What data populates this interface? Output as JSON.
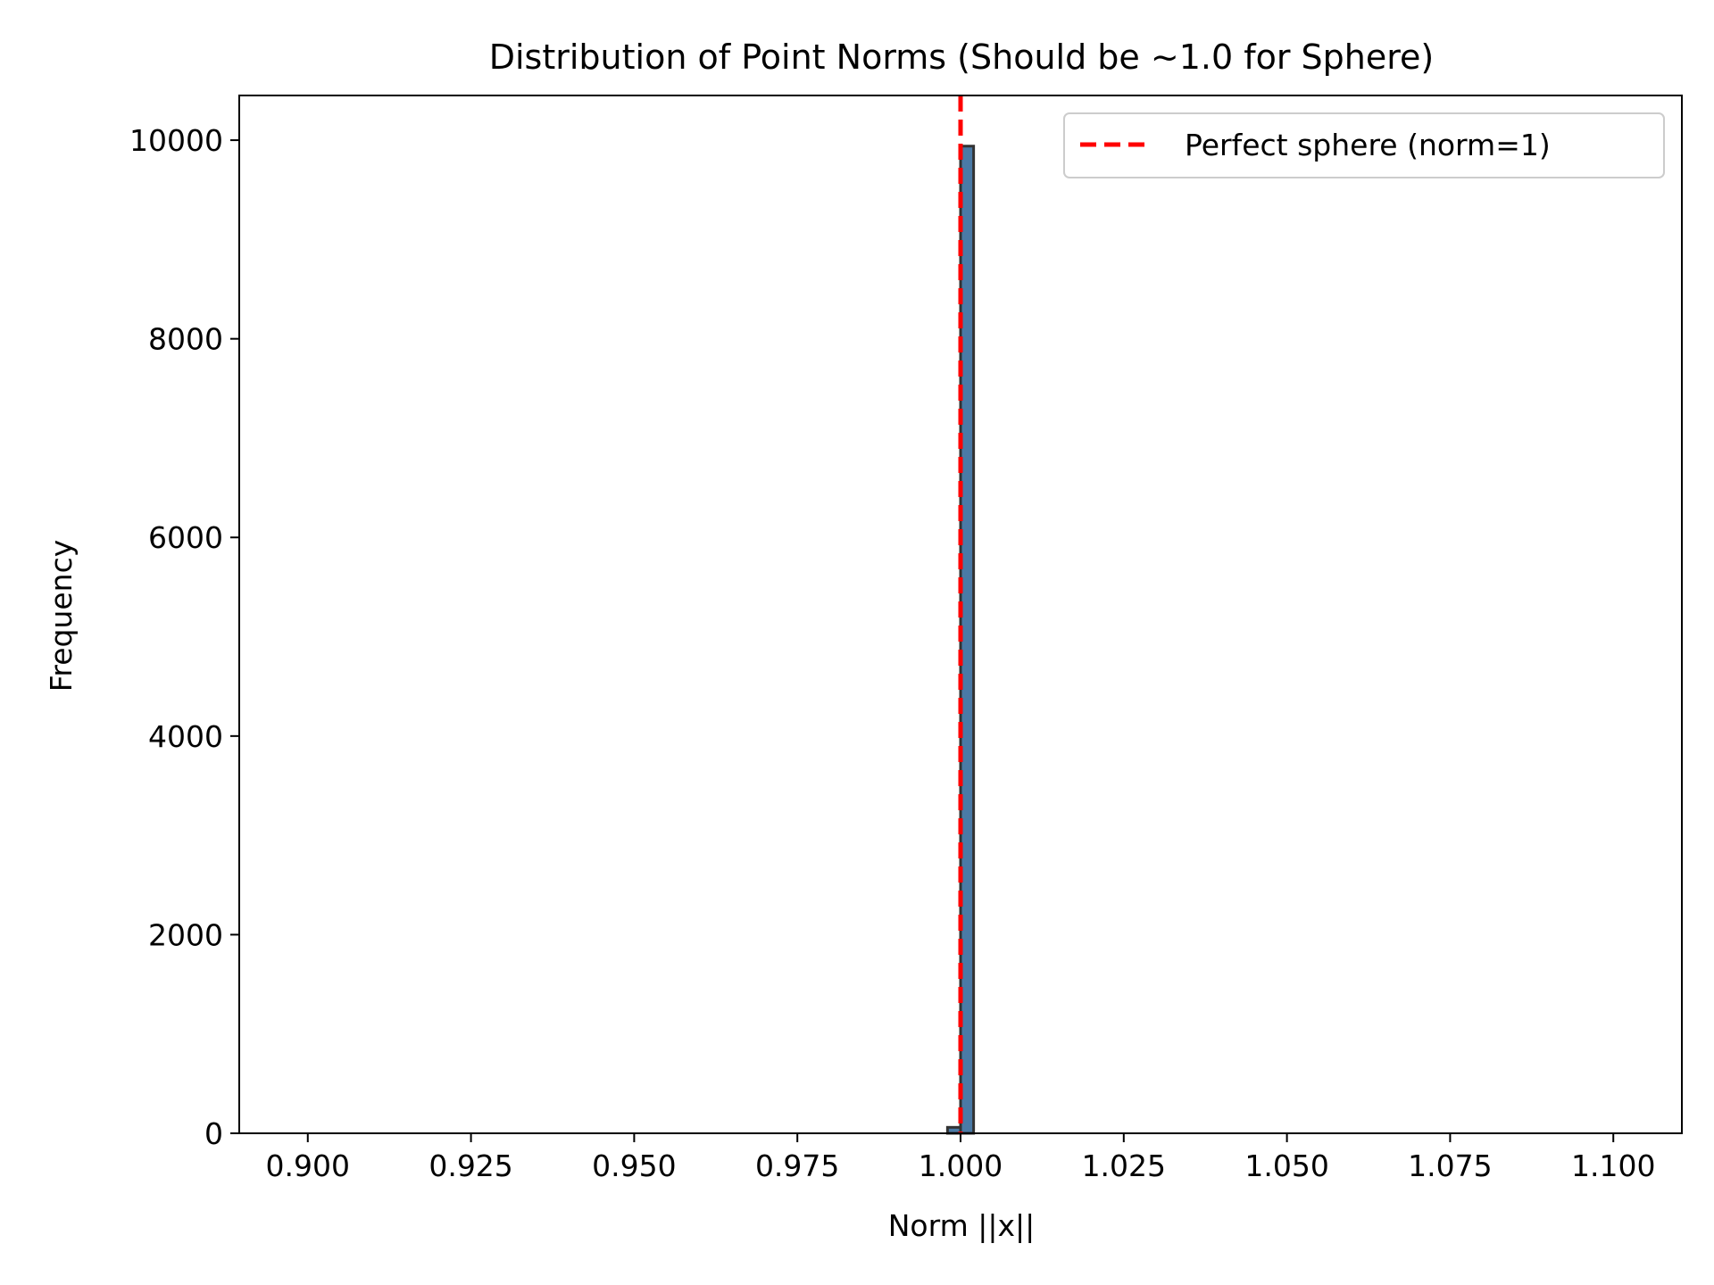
{
  "chart_data": {
    "type": "bar",
    "title": "Distribution of Point Norms (Should be ~1.0 for Sphere)",
    "xlabel": "Norm ||x||",
    "ylabel": "Frequency",
    "xlim": [
      0.8895,
      1.1105
    ],
    "ylim": [
      0,
      10450
    ],
    "xticks": [
      0.9,
      0.925,
      0.95,
      0.975,
      1.0,
      1.025,
      1.05,
      1.075,
      1.1
    ],
    "xtick_labels": [
      "0.900",
      "0.925",
      "0.950",
      "0.975",
      "1.000",
      "1.025",
      "1.050",
      "1.075",
      "1.100"
    ],
    "yticks": [
      0,
      2000,
      4000,
      6000,
      8000,
      10000
    ],
    "ytick_labels": [
      "0",
      "2000",
      "4000",
      "6000",
      "8000",
      "10000"
    ],
    "bins": [
      {
        "x0": 0.998,
        "x1": 1.0,
        "count": 60
      },
      {
        "x0": 1.0,
        "x1": 1.002,
        "count": 9940
      }
    ],
    "bar_color": "#4a7aa6",
    "bar_edge_color": "#333333",
    "reference_line": {
      "x": 1.0,
      "color": "#ff0000",
      "style": "dashed"
    },
    "legend": {
      "position": "upper right",
      "entries": [
        {
          "label": "Perfect sphere (norm=1)",
          "color": "#ff0000",
          "style": "dashed"
        }
      ]
    },
    "grid": false
  }
}
